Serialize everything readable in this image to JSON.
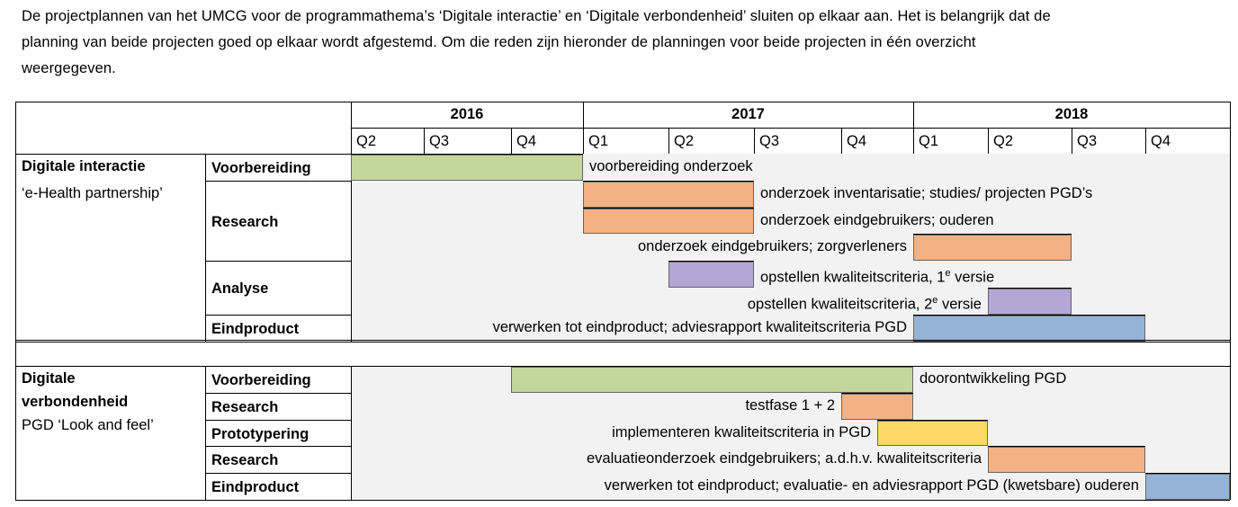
{
  "intro": {
    "lines": [
      "De projectplannen van het UMCG voor de programmathema’s ‘Digitale interactie’ en ‘Digitale verbondenheid’ sluiten op elkaar aan. Het is belangrijk dat de",
      "planning van beide projecten goed op elkaar wordt afgestemd. Om die reden zijn hieronder de planningen voor beide projecten in één overzicht",
      "weergegeven."
    ]
  },
  "colors": {
    "green": "#c3d69b",
    "orange": "#f4b183",
    "purple": "#b4a7d6",
    "blue": "#95b3d7",
    "yellow": "#ffd966",
    "gray": "#f2f2f2"
  },
  "timeline": {
    "years": [
      {
        "label": "2016",
        "start": 0,
        "end": 3
      },
      {
        "label": "2017",
        "start": 3,
        "end": 7
      },
      {
        "label": "2018",
        "start": 7,
        "end": 11
      }
    ],
    "quarters": [
      "Q2",
      "Q3",
      "Q4",
      "Q1",
      "Q2",
      "Q3",
      "Q4",
      "Q1",
      "Q2",
      "Q3",
      "Q4"
    ]
  },
  "projects": [
    {
      "name_lines": [
        "Digitale interactie"
      ],
      "subtitle": "‘e-Health partnership’",
      "phases": [
        {
          "label": "Voorbereiding",
          "rows": 1
        },
        {
          "label": "Research",
          "rows": 3
        },
        {
          "label": "Analyse",
          "rows": 2
        },
        {
          "label": "Eindproduct",
          "rows": 1
        }
      ],
      "tasks": [
        {
          "label": "voorbereiding onderzoek",
          "start": 0,
          "end": 3,
          "color": "green",
          "label_side": "right"
        },
        {
          "label": "onderzoek inventarisatie; studies/ projecten PGD’s",
          "start": 3,
          "end": 5,
          "color": "orange",
          "label_side": "right"
        },
        {
          "label": "onderzoek eindgebruikers; ouderen",
          "start": 3,
          "end": 5,
          "color": "orange",
          "label_side": "right"
        },
        {
          "label": "onderzoek eindgebruikers; zorgverleners",
          "start": 7,
          "end": 9,
          "color": "orange",
          "label_side": "left"
        },
        {
          "label": "opstellen kwaliteitscriteria, 1",
          "sup": "e",
          "suffix": " versie",
          "start": 4,
          "end": 5,
          "color": "purple",
          "label_side": "right"
        },
        {
          "label": "opstellen kwaliteitscriteria, 2",
          "sup": "e",
          "suffix": " versie",
          "start": 8,
          "end": 9,
          "color": "purple",
          "label_side": "left"
        },
        {
          "label": "verwerken tot eindproduct; adviesrapport kwaliteitscriteria PGD",
          "start": 7,
          "end": 10,
          "color": "blue",
          "label_side": "left"
        }
      ]
    },
    {
      "name_lines": [
        "Digitale",
        "verbondenheid"
      ],
      "subtitle": "PGD ‘Look and feel’",
      "phases": [
        {
          "label": "Voorbereiding",
          "rows": 1
        },
        {
          "label": "Research",
          "rows": 1
        },
        {
          "label": "Prototypering",
          "rows": 1
        },
        {
          "label": "Research",
          "rows": 1
        },
        {
          "label": "Eindproduct",
          "rows": 1
        }
      ],
      "tasks": [
        {
          "label": "doorontwikkeling PGD",
          "start": 2,
          "end": 7,
          "color": "green",
          "label_side": "right"
        },
        {
          "label": "testfase 1 + 2",
          "start": 6,
          "end": 7,
          "color": "orange",
          "label_side": "left"
        },
        {
          "label": "implementeren kwaliteitscriteria in PGD",
          "start": 6.5,
          "end": 8,
          "color": "yellow",
          "label_side": "left"
        },
        {
          "label": "evaluatieonderzoek eindgebruikers; a.d.h.v. kwaliteitscriteria",
          "start": 8,
          "end": 10,
          "color": "orange",
          "label_side": "left"
        },
        {
          "label": "verwerken tot eindproduct; evaluatie- en adviesrapport PGD (kwetsbare) ouderen",
          "start": 10,
          "end": 11,
          "color": "blue",
          "label_side": "left"
        }
      ]
    }
  ]
}
